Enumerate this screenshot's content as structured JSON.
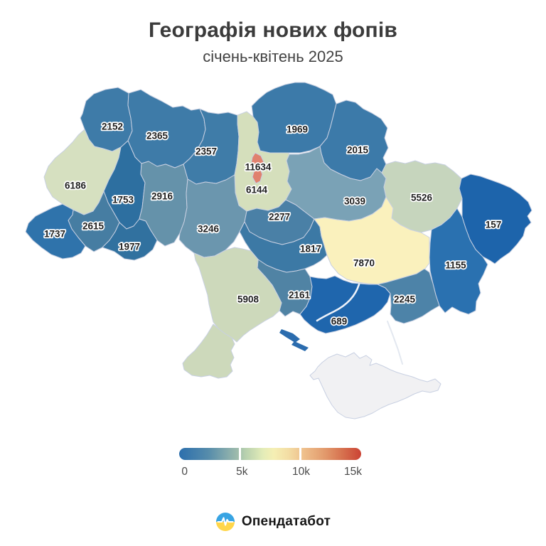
{
  "header": {
    "title": "Географія нових фопів",
    "subtitle": "січень-квітень 2025"
  },
  "map": {
    "regions": [
      {
        "id": "volyn",
        "value": "2152",
        "color": "#3e7ba8"
      },
      {
        "id": "rivne",
        "value": "2365",
        "color": "#3e7ba8"
      },
      {
        "id": "zhytomyr",
        "value": "2357",
        "color": "#3f7ca8"
      },
      {
        "id": "kyiv-oblast",
        "value": "6144",
        "color": "#d5dfbc"
      },
      {
        "id": "kyiv-city",
        "value": "11634",
        "color": "#e0816e"
      },
      {
        "id": "chernihiv",
        "value": "1969",
        "color": "#3c7aa9"
      },
      {
        "id": "sumy",
        "value": "2015",
        "color": "#3c7aa9"
      },
      {
        "id": "lviv",
        "value": "6186",
        "color": "#d6e0c0"
      },
      {
        "id": "ternopil",
        "value": "1753",
        "color": "#2d6fa0"
      },
      {
        "id": "khmelnytskyi",
        "value": "2916",
        "color": "#6592aa"
      },
      {
        "id": "ivano-frankivsk",
        "value": "2615",
        "color": "#467da2"
      },
      {
        "id": "zakarpattia",
        "value": "1737",
        "color": "#2f73ab"
      },
      {
        "id": "chernivtsi",
        "value": "1977",
        "color": "#31719f"
      },
      {
        "id": "vinnytsia",
        "value": "3246",
        "color": "#6b96ae"
      },
      {
        "id": "cherkasy",
        "value": "2277",
        "color": "#4a80a6"
      },
      {
        "id": "poltava",
        "value": "3039",
        "color": "#7aa2b6"
      },
      {
        "id": "kharkiv",
        "value": "5526",
        "color": "#c6d5bd"
      },
      {
        "id": "luhansk",
        "value": "157",
        "color": "#1d64ab"
      },
      {
        "id": "kirovohrad",
        "value": "1817",
        "color": "#3c79a5"
      },
      {
        "id": "dnipropetrovsk",
        "value": "7870",
        "color": "#faf1bd"
      },
      {
        "id": "donetsk",
        "value": "1155",
        "color": "#2a71b0"
      },
      {
        "id": "zaporizhzhia",
        "value": "2245",
        "color": "#4d83a8"
      },
      {
        "id": "mykolaiv",
        "value": "2161",
        "color": "#5083a4"
      },
      {
        "id": "odesa",
        "value": "5908",
        "color": "#cdd9bb"
      },
      {
        "id": "kherson",
        "value": "689",
        "color": "#1f66ad"
      },
      {
        "id": "crimea",
        "value": "",
        "color": "#f1f1f3"
      }
    ]
  },
  "legend": {
    "ticks": [
      "0",
      "5k",
      "10k",
      "15k"
    ],
    "gradient_stops": [
      "#2c6fad 0%",
      "#568cab 16%",
      "#9ebbac 32%",
      "#b5cfae 36%",
      "#e3ecb8 46%",
      "#f5efb4 52%",
      "#f3dda4 60%",
      "#efc18d 68%",
      "#e29a6c 80%",
      "#d6704e 90%",
      "#cb4334 100%"
    ]
  },
  "footer": {
    "brand": "Опендатабот"
  },
  "chart_data": {
    "type": "heatmap",
    "subtype": "choropleth_map_ukraine_oblasts",
    "title": "Географія нових фопів",
    "subtitle": "січень-квітень 2025",
    "legend_ticks": [
      "0",
      "5k",
      "10k",
      "15k"
    ],
    "scale_range": [
      0,
      15000
    ],
    "colorscale": "blue (low) → pale green → yellow → orange → red (high)",
    "values": [
      {
        "region": "volyn",
        "value": 2152
      },
      {
        "region": "rivne",
        "value": 2365
      },
      {
        "region": "zhytomyr",
        "value": 2357
      },
      {
        "region": "kyiv-oblast",
        "value": 6144
      },
      {
        "region": "kyiv-city",
        "value": 11634
      },
      {
        "region": "chernihiv",
        "value": 1969
      },
      {
        "region": "sumy",
        "value": 2015
      },
      {
        "region": "lviv",
        "value": 6186
      },
      {
        "region": "ternopil",
        "value": 1753
      },
      {
        "region": "khmelnytskyi",
        "value": 2916
      },
      {
        "region": "ivano-frankivsk",
        "value": 2615
      },
      {
        "region": "zakarpattia",
        "value": 1737
      },
      {
        "region": "chernivtsi",
        "value": 1977
      },
      {
        "region": "vinnytsia",
        "value": 3246
      },
      {
        "region": "cherkasy",
        "value": 2277
      },
      {
        "region": "poltava",
        "value": 3039
      },
      {
        "region": "kharkiv",
        "value": 5526
      },
      {
        "region": "luhansk",
        "value": 157
      },
      {
        "region": "kirovohrad",
        "value": 1817
      },
      {
        "region": "dnipropetrovsk",
        "value": 7870
      },
      {
        "region": "donetsk",
        "value": 1155
      },
      {
        "region": "zaporizhzhia",
        "value": 2245
      },
      {
        "region": "mykolaiv",
        "value": 2161
      },
      {
        "region": "odesa",
        "value": 5908
      },
      {
        "region": "kherson",
        "value": 689
      },
      {
        "region": "crimea",
        "value": null
      }
    ]
  }
}
